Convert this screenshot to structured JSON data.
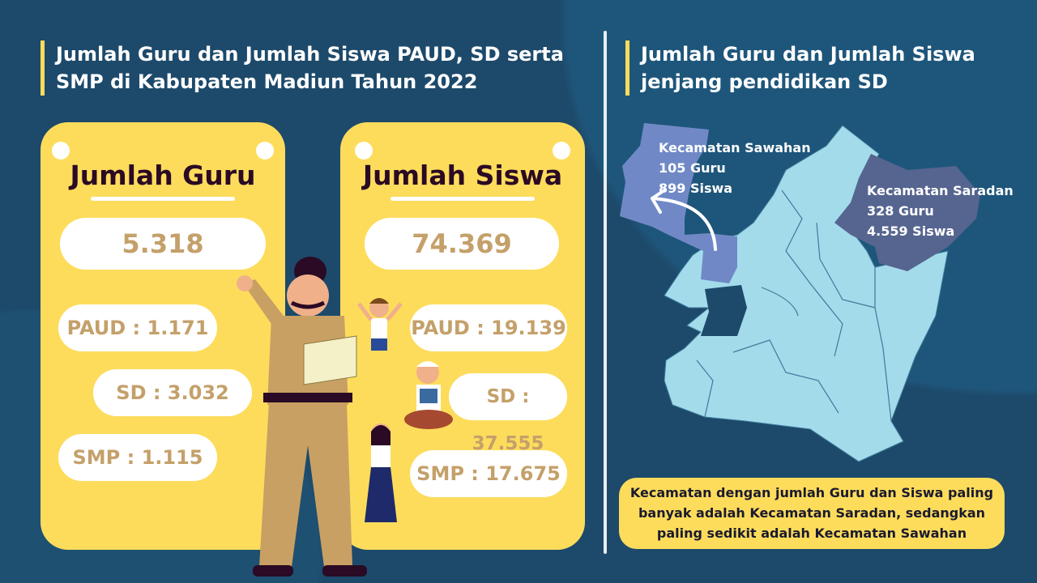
{
  "colors": {
    "background": "#1d4a6b",
    "card": "#fddc5c",
    "value_text": "#c4a06a",
    "heading_text": "#2a0a24",
    "map_base": "#a3dbeb",
    "map_sawahan": "#7089c6",
    "map_saradan": "#566590"
  },
  "left": {
    "title_line1": "Jumlah Guru dan Jumlah Siswa PAUD, SD serta",
    "title_line2": "SMP di Kabupaten Madiun Tahun 2022"
  },
  "guru": {
    "heading": "Jumlah Guru",
    "total": "5.318",
    "paud": "PAUD : 1.171",
    "sd": "SD : 3.032",
    "smp": "SMP : 1.115"
  },
  "siswa": {
    "heading": "Jumlah Siswa",
    "total": "74.369",
    "paud": "PAUD : 19.139",
    "sd": "SD : 37.555",
    "smp": "SMP : 17.675"
  },
  "right": {
    "title_line1": "Jumlah Guru dan Jumlah Siswa",
    "title_line2": "jenjang pendidikan SD"
  },
  "map": {
    "sawahan": {
      "name": "Kecamatan Sawahan",
      "guru": "105 Guru",
      "siswa": "899 Siswa"
    },
    "saradan": {
      "name": "Kecamatan Saradan",
      "guru": "328 Guru",
      "siswa": "4.559 Siswa"
    }
  },
  "note": {
    "line1": "Kecamatan dengan jumlah Guru dan Siswa paling",
    "line2": "banyak adalah Kecamatan Saradan, sedangkan",
    "line3": "paling sedikit adalah Kecamatan Sawahan"
  }
}
